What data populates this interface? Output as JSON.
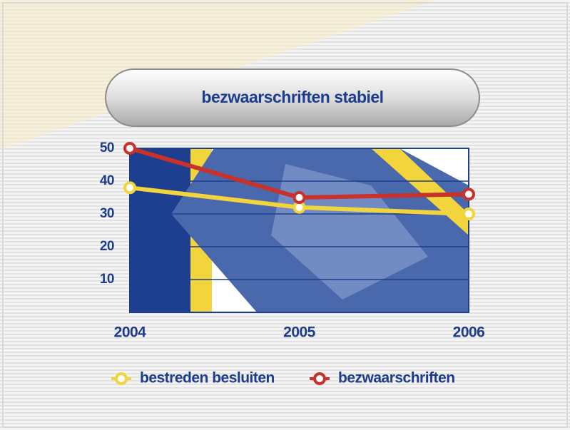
{
  "chart_data": {
    "type": "line",
    "title": "bezwaarschriften stabiel",
    "categories": [
      "2004",
      "2005",
      "2006"
    ],
    "series": [
      {
        "name": "bestreden besluiten",
        "color": "#f2d43c",
        "values": [
          38,
          32,
          30
        ]
      },
      {
        "name": "bezwaarschriften",
        "color": "#c8322a",
        "values": [
          50,
          35,
          36
        ]
      }
    ],
    "ylim": [
      0,
      50
    ],
    "yticks": [
      10,
      20,
      30,
      40,
      50
    ],
    "grid": true
  }
}
